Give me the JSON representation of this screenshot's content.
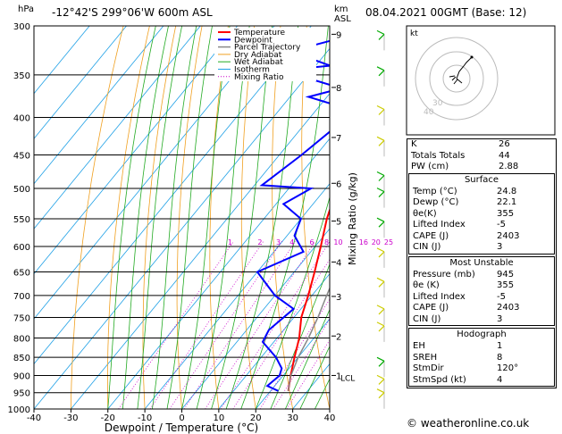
{
  "header": {
    "location": "-12°42'S  299°06'W  600m  ASL",
    "datetime": "08.04.2021  00GMT  (Base: 12)",
    "hpa_label": "hPa",
    "km_label_1": "km",
    "km_label_2": "ASL"
  },
  "chart_data": {
    "type": "line",
    "title": "-12°42'S  299°06'W  600m  ASL",
    "xlabel": "Dewpoint / Temperature (°C)",
    "ylabel": "hPa",
    "right_ylabel": "Mixing Ratio (g/kg)",
    "x_ticks": [
      -40,
      -30,
      -20,
      -10,
      0,
      10,
      20,
      30,
      40
    ],
    "x_tick_labels": [
      "-40",
      "-30",
      "-20",
      "-10",
      "0",
      "10",
      "20",
      "30",
      "40"
    ],
    "pressure_levels": [
      300,
      350,
      400,
      450,
      500,
      550,
      600,
      650,
      700,
      750,
      800,
      850,
      900,
      950,
      1000
    ],
    "pressure_labels": [
      "300",
      "350",
      "400",
      "450",
      "500",
      "550",
      "600",
      "650",
      "700",
      "750",
      "800",
      "850",
      "900",
      "950",
      "1000"
    ],
    "xlim": [
      -40,
      40
    ],
    "ylim": [
      1000,
      300
    ],
    "y_scale": "log",
    "km_levels": [
      {
        "label": "9",
        "p": 308
      },
      {
        "label": "8",
        "p": 364
      },
      {
        "label": "7",
        "p": 426
      },
      {
        "label": "6",
        "p": 492
      },
      {
        "label": "5",
        "p": 554
      },
      {
        "label": "4",
        "p": 630
      },
      {
        "label": "3",
        "p": 702
      },
      {
        "label": "2",
        "p": 795
      },
      {
        "label": "1",
        "p": 900
      }
    ],
    "lcl_label": "LCL",
    "lcl_p": 905,
    "mixing_ratio_labels": [
      "1",
      "2",
      "3",
      "4",
      "6",
      "8",
      "10",
      "16",
      "20",
      "25"
    ],
    "mixing_ratio_values": [
      1,
      2,
      3,
      4,
      6,
      8,
      10,
      16,
      20,
      25
    ],
    "legend": [
      "Temperature",
      "Dewpoint",
      "Parcel Trajectory",
      "Dry Adiabat",
      "Wet Adiabat",
      "Isotherm",
      "Mixing Ratio"
    ],
    "legend_placement": "top-left",
    "series": [
      {
        "name": "Temperature",
        "color": "#ff0000",
        "points": [
          {
            "p": 945,
            "t": 24.8
          },
          {
            "p": 900,
            "t": 22.0
          },
          {
            "p": 850,
            "t": 19.0
          },
          {
            "p": 800,
            "t": 16.0
          },
          {
            "p": 750,
            "t": 12.0
          },
          {
            "p": 700,
            "t": 9.0
          },
          {
            "p": 650,
            "t": 5.5
          },
          {
            "p": 600,
            "t": 1.5
          },
          {
            "p": 550,
            "t": -3.0
          },
          {
            "p": 500,
            "t": -7.0
          },
          {
            "p": 450,
            "t": -11.0
          },
          {
            "p": 400,
            "t": -18.0
          },
          {
            "p": 350,
            "t": -26.0
          },
          {
            "p": 300,
            "t": -35.0
          }
        ]
      },
      {
        "name": "Dewpoint",
        "color": "#0000ff",
        "points": [
          {
            "p": 945,
            "t": 22.1
          },
          {
            "p": 930,
            "t": 18.0
          },
          {
            "p": 900,
            "t": 19.0
          },
          {
            "p": 880,
            "t": 18.0
          },
          {
            "p": 850,
            "t": 14.0
          },
          {
            "p": 810,
            "t": 7.0
          },
          {
            "p": 780,
            "t": 6.0
          },
          {
            "p": 730,
            "t": 8.0
          },
          {
            "p": 700,
            "t": 0.0
          },
          {
            "p": 650,
            "t": -10.0
          },
          {
            "p": 610,
            "t": -2.0
          },
          {
            "p": 580,
            "t": -8.0
          },
          {
            "p": 550,
            "t": -10.0
          },
          {
            "p": 525,
            "t": -18.0
          },
          {
            "p": 500,
            "t": -14.0
          },
          {
            "p": 495,
            "t": -28.0
          },
          {
            "p": 450,
            "t": -24.0
          },
          {
            "p": 400,
            "t": -20.0
          },
          {
            "p": 390,
            "t": -21.0
          },
          {
            "p": 375,
            "t": -35.0
          },
          {
            "p": 365,
            "t": -28.0
          },
          {
            "p": 345,
            "t": -48.0
          },
          {
            "p": 340,
            "t": -36.0
          },
          {
            "p": 325,
            "t": -50.0
          },
          {
            "p": 310,
            "t": -38.0
          },
          {
            "p": 300,
            "t": -42.0
          }
        ]
      },
      {
        "name": "Parcel Trajectory",
        "color": "#888888",
        "points": [
          {
            "p": 945,
            "t": 24.8
          },
          {
            "p": 905,
            "t": 22.3
          },
          {
            "p": 850,
            "t": 20.0
          },
          {
            "p": 800,
            "t": 18.5
          },
          {
            "p": 750,
            "t": 16.5
          },
          {
            "p": 700,
            "t": 14.0
          },
          {
            "p": 650,
            "t": 11.5
          },
          {
            "p": 600,
            "t": 8.5
          },
          {
            "p": 550,
            "t": 5.0
          },
          {
            "p": 500,
            "t": 1.0
          },
          {
            "p": 450,
            "t": -4.0
          },
          {
            "p": 400,
            "t": -9.5
          },
          {
            "p": 350,
            "t": -16.5
          },
          {
            "p": 300,
            "t": -25.0
          }
        ]
      }
    ]
  },
  "indices": {
    "rows": [
      {
        "label": "K",
        "value": "26"
      },
      {
        "label": "Totals Totals",
        "value": "44"
      },
      {
        "label": "PW (cm)",
        "value": "2.88"
      }
    ]
  },
  "surface": {
    "title": "Surface",
    "rows": [
      {
        "label": "Temp (°C)",
        "value": "24.8"
      },
      {
        "label": "Dewp (°C)",
        "value": "22.1"
      },
      {
        "label": "θe(K)",
        "value": "355"
      },
      {
        "label": "Lifted Index",
        "value": "-5"
      },
      {
        "label": "CAPE (J)",
        "value": "2403"
      },
      {
        "label": "CIN (J)",
        "value": "3"
      }
    ]
  },
  "most_unstable": {
    "title": "Most Unstable",
    "rows": [
      {
        "label": "Pressure (mb)",
        "value": "945"
      },
      {
        "label": "θe (K)",
        "value": "355"
      },
      {
        "label": "Lifted Index",
        "value": "-5"
      },
      {
        "label": "CAPE (J)",
        "value": "2403"
      },
      {
        "label": "CIN (J)",
        "value": "3"
      }
    ]
  },
  "hodograph_table": {
    "title": "Hodograph",
    "rows": [
      {
        "label": "EH",
        "value": "1"
      },
      {
        "label": "SREH",
        "value": "8"
      },
      {
        "label": "StmDir",
        "value": "120°"
      },
      {
        "label": "StmSpd (kt)",
        "value": "4"
      }
    ]
  },
  "hodograph": {
    "unit_label": "kt",
    "ring_labels": [
      "40",
      "30"
    ]
  },
  "watermark": "© weatheronline.co.uk"
}
